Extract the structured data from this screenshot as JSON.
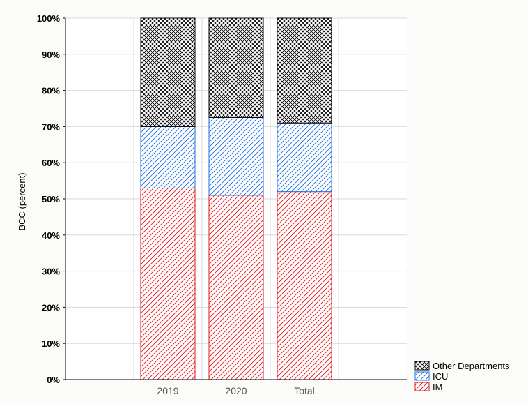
{
  "chart_data": {
    "type": "bar",
    "stacked": true,
    "percent": true,
    "categories": [
      "2019",
      "2020",
      "Total"
    ],
    "series": [
      {
        "name": "IM",
        "values": [
          53,
          51,
          52
        ],
        "color": "#e31a1c",
        "pattern": "diagonal-hatch"
      },
      {
        "name": "ICU",
        "values": [
          17,
          21.5,
          19
        ],
        "color": "#1f6fe0",
        "pattern": "diagonal-hatch"
      },
      {
        "name": "Other Departments",
        "values": [
          30,
          27.5,
          29
        ],
        "color": "#000000",
        "pattern": "cross-hatch"
      }
    ],
    "ylabel": "BCC (percent)",
    "ylim": [
      0,
      100
    ],
    "yticks": [
      "0%",
      "10%",
      "20%",
      "30%",
      "40%",
      "50%",
      "60%",
      "70%",
      "80%",
      "90%",
      "100%"
    ],
    "grid": true,
    "legend_placement": "bottom-right",
    "legend_order": [
      "Other Departments",
      "ICU",
      "IM"
    ]
  }
}
